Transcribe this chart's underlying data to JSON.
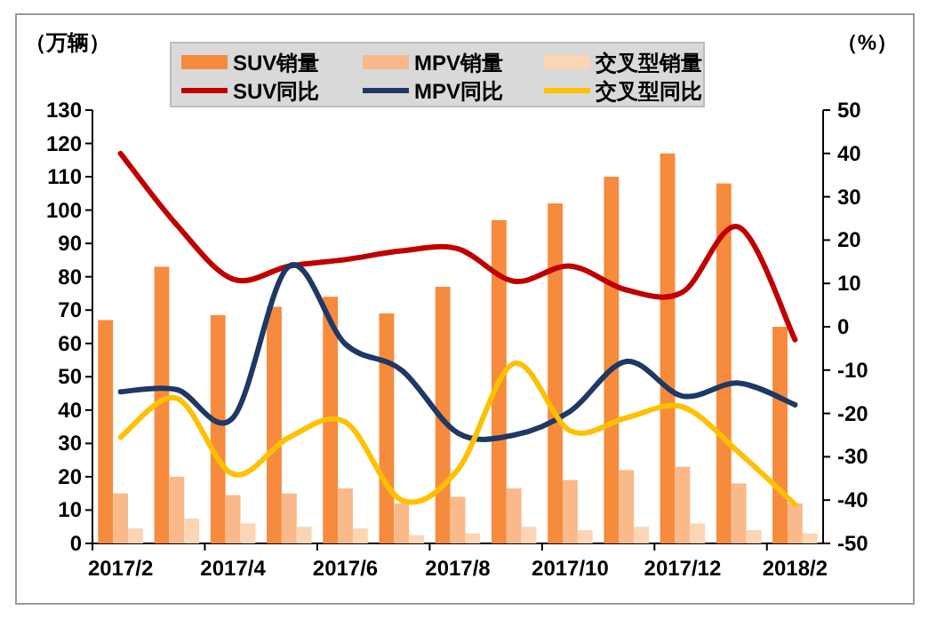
{
  "chart_data": {
    "type": "bar",
    "ylabel": "（万辆）",
    "y2label": "（%）",
    "categories": [
      "2017/2",
      null,
      "2017/4",
      null,
      "2017/6",
      null,
      "2017/8",
      null,
      "2017/10",
      null,
      "2017/12",
      null,
      "2018/2"
    ],
    "ylim": [
      0,
      130
    ],
    "yticks": [
      0,
      10,
      20,
      30,
      40,
      50,
      60,
      70,
      80,
      90,
      100,
      110,
      120,
      130
    ],
    "y2lim": [
      -50,
      50
    ],
    "y2ticks": [
      -50,
      -40,
      -30,
      -20,
      -10,
      0,
      10,
      20,
      30,
      40,
      50
    ],
    "legend": "top",
    "grid": false,
    "series": [
      {
        "name": "SUV销量",
        "color": "#f68b3e",
        "values": [
          67,
          83,
          68.5,
          71,
          74,
          69,
          77,
          97,
          102,
          110,
          117,
          108,
          65
        ]
      },
      {
        "name": "MPV销量",
        "color": "#f9b98a",
        "values": [
          15,
          20,
          14.5,
          15,
          16.5,
          12,
          14,
          16.5,
          19,
          22,
          23,
          18,
          12
        ]
      },
      {
        "name": "交叉型销量",
        "color": "#fcd5b5",
        "values": [
          4.5,
          7.5,
          6,
          5,
          4.5,
          2.5,
          3,
          5,
          4,
          5,
          6,
          4,
          3
        ]
      },
      {
        "name": "SUV同比",
        "type": "line",
        "axis": "y2",
        "color": "#c00000",
        "values": [
          40,
          23.5,
          11,
          14,
          15.5,
          17.5,
          18,
          10.5,
          14,
          8.5,
          8,
          23,
          -3
        ]
      },
      {
        "name": "MPV同比",
        "type": "line",
        "axis": "y2",
        "color": "#1f3864",
        "values": [
          -15,
          -14.5,
          -21,
          14,
          -4,
          -10,
          -24.5,
          -25,
          -19.5,
          -8,
          -16,
          -13,
          -18
        ]
      },
      {
        "name": "交叉型同比",
        "type": "line",
        "axis": "y2",
        "color": "#ffc000",
        "values": [
          -25.5,
          -16.5,
          -34,
          -25.5,
          -22,
          -40,
          -33,
          -8.5,
          -24,
          -21,
          -18.5,
          -29,
          -41
        ]
      }
    ]
  }
}
